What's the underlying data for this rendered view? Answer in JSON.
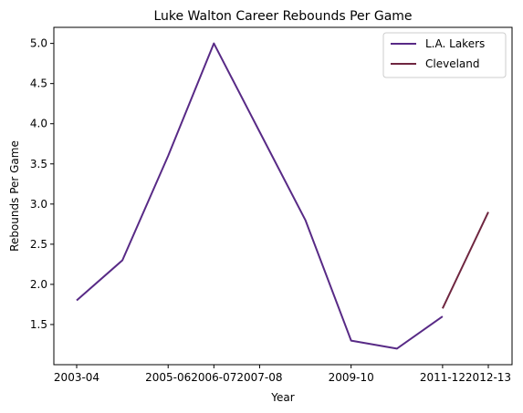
{
  "chart_data": {
    "type": "line",
    "title": "Luke Walton Career Rebounds Per Game",
    "xlabel": "Year",
    "ylabel": "Rebounds Per Game",
    "x_tick_labels": [
      "2003-04",
      "2005-06",
      "2006-07",
      "2007-08",
      "2009-10",
      "2011-12",
      "2012-13"
    ],
    "ylim": [
      1.0,
      5.2
    ],
    "y_ticks": [
      "1.5",
      "2.0",
      "2.5",
      "3.0",
      "3.5",
      "4.0",
      "4.5",
      "5.0"
    ],
    "legend_position": "top-right",
    "grid": false,
    "series": [
      {
        "name": "L.A. Lakers",
        "color": "#582a86",
        "points": [
          {
            "x": "2003-04",
            "y": 1.8
          },
          {
            "x": "2004-05",
            "y": 2.3
          },
          {
            "x": "2005-06",
            "y": 3.6
          },
          {
            "x": "2006-07",
            "y": 5.0
          },
          {
            "x": "2007-08",
            "y": 3.9
          },
          {
            "x": "2008-09",
            "y": 2.8
          },
          {
            "x": "2009-10",
            "y": 1.3
          },
          {
            "x": "2010-11",
            "y": 1.2
          },
          {
            "x": "2011-12",
            "y": 1.6
          }
        ]
      },
      {
        "name": "Cleveland",
        "color": "#6f2640",
        "points": [
          {
            "x": "2011-12",
            "y": 1.7
          },
          {
            "x": "2012-13",
            "y": 2.9
          }
        ]
      }
    ]
  }
}
